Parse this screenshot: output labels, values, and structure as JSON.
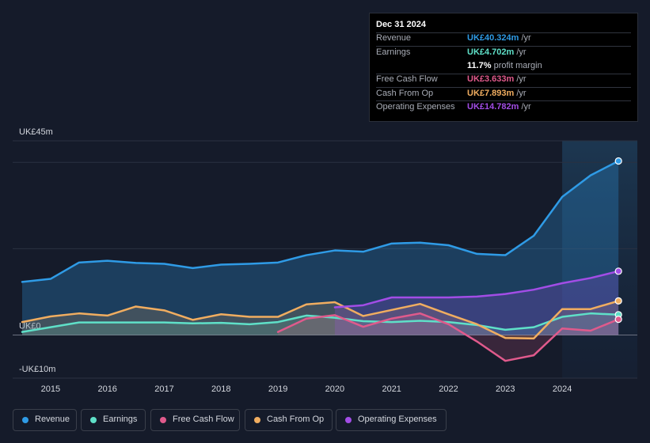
{
  "chart_data": {
    "type": "area",
    "title": "",
    "y_axis": {
      "min": -10,
      "max": 45,
      "labels": {
        "top": "UK£45m",
        "zero": "UK£0",
        "bottom": "-UK£10m"
      }
    },
    "x_ticks": [
      "2015",
      "2016",
      "2017",
      "2018",
      "2019",
      "2020",
      "2021",
      "2022",
      "2023",
      "2024"
    ],
    "highlight_start": 2024.0,
    "series": [
      {
        "key": "revenue",
        "name": "Revenue",
        "color": "#2f9be6",
        "points": [
          [
            2014.5,
            12.3
          ],
          [
            2015.0,
            13.0
          ],
          [
            2015.5,
            16.8
          ],
          [
            2016.0,
            17.2
          ],
          [
            2016.5,
            16.7
          ],
          [
            2017.0,
            16.5
          ],
          [
            2017.5,
            15.5
          ],
          [
            2018.0,
            16.3
          ],
          [
            2018.5,
            16.5
          ],
          [
            2019.0,
            16.8
          ],
          [
            2019.5,
            18.5
          ],
          [
            2020.0,
            19.6
          ],
          [
            2020.5,
            19.3
          ],
          [
            2021.0,
            21.2
          ],
          [
            2021.5,
            21.4
          ],
          [
            2022.0,
            20.8
          ],
          [
            2022.5,
            18.8
          ],
          [
            2023.0,
            18.5
          ],
          [
            2023.5,
            23.0
          ],
          [
            2024.0,
            32.0
          ],
          [
            2024.5,
            37.0
          ],
          [
            2024.99,
            40.324
          ]
        ]
      },
      {
        "key": "earnings",
        "name": "Earnings",
        "color": "#5fe0c8",
        "points": [
          [
            2014.5,
            0.7
          ],
          [
            2015.0,
            1.8
          ],
          [
            2015.5,
            2.9
          ],
          [
            2016.0,
            2.9
          ],
          [
            2016.5,
            2.9
          ],
          [
            2017.0,
            2.9
          ],
          [
            2017.5,
            2.7
          ],
          [
            2018.0,
            2.8
          ],
          [
            2018.5,
            2.5
          ],
          [
            2019.0,
            3.0
          ],
          [
            2019.5,
            4.5
          ],
          [
            2020.0,
            4.0
          ],
          [
            2020.5,
            3.2
          ],
          [
            2021.0,
            3.0
          ],
          [
            2021.5,
            3.3
          ],
          [
            2022.0,
            3.0
          ],
          [
            2022.5,
            2.3
          ],
          [
            2023.0,
            1.2
          ],
          [
            2023.5,
            1.8
          ],
          [
            2024.0,
            4.2
          ],
          [
            2024.5,
            5.0
          ],
          [
            2024.99,
            4.702
          ]
        ]
      },
      {
        "key": "fcf",
        "name": "Free Cash Flow",
        "color": "#e05a8c",
        "points": [
          [
            2019.0,
            0.7
          ],
          [
            2019.5,
            3.8
          ],
          [
            2020.0,
            4.6
          ],
          [
            2020.5,
            1.9
          ],
          [
            2021.0,
            3.8
          ],
          [
            2021.5,
            5.0
          ],
          [
            2022.0,
            2.5
          ],
          [
            2022.5,
            -1.5
          ],
          [
            2023.0,
            -6.0
          ],
          [
            2023.5,
            -4.7
          ],
          [
            2024.0,
            1.5
          ],
          [
            2024.5,
            1.0
          ],
          [
            2024.99,
            3.633
          ]
        ]
      },
      {
        "key": "cfo",
        "name": "Cash From Op",
        "color": "#f0ad60",
        "points": [
          [
            2014.5,
            3.0
          ],
          [
            2015.0,
            4.3
          ],
          [
            2015.5,
            5.0
          ],
          [
            2016.0,
            4.5
          ],
          [
            2016.5,
            6.6
          ],
          [
            2017.0,
            5.7
          ],
          [
            2017.5,
            3.5
          ],
          [
            2018.0,
            4.8
          ],
          [
            2018.5,
            4.2
          ],
          [
            2019.0,
            4.2
          ],
          [
            2019.5,
            7.1
          ],
          [
            2020.0,
            7.6
          ],
          [
            2020.5,
            4.4
          ],
          [
            2021.0,
            5.8
          ],
          [
            2021.5,
            7.2
          ],
          [
            2022.0,
            4.8
          ],
          [
            2022.5,
            2.5
          ],
          [
            2023.0,
            -0.7
          ],
          [
            2023.5,
            -0.8
          ],
          [
            2024.0,
            6.0
          ],
          [
            2024.5,
            6.0
          ],
          [
            2024.99,
            7.893
          ]
        ]
      },
      {
        "key": "opex",
        "name": "Operating Expenses",
        "color": "#a24de6",
        "points": [
          [
            2020.0,
            6.4
          ],
          [
            2020.5,
            6.9
          ],
          [
            2021.0,
            8.7
          ],
          [
            2021.5,
            8.7
          ],
          [
            2022.0,
            8.7
          ],
          [
            2022.5,
            8.9
          ],
          [
            2023.0,
            9.5
          ],
          [
            2023.5,
            10.5
          ],
          [
            2024.0,
            12.0
          ],
          [
            2024.5,
            13.2
          ],
          [
            2024.99,
            14.782
          ]
        ]
      }
    ]
  },
  "tooltip": {
    "date": "Dec 31 2024",
    "rows": [
      {
        "label": "Revenue",
        "value": "UK£40.324m",
        "unit": "/yr",
        "color": "#2f9be6"
      },
      {
        "label": "Earnings",
        "value": "UK£4.702m",
        "unit": "/yr",
        "color": "#5fe0c8"
      },
      {
        "label": "",
        "value": "11.7%",
        "unit": "profit margin",
        "color": "#ffffff"
      },
      {
        "label": "Free Cash Flow",
        "value": "UK£3.633m",
        "unit": "/yr",
        "color": "#e05a8c"
      },
      {
        "label": "Cash From Op",
        "value": "UK£7.893m",
        "unit": "/yr",
        "color": "#f0ad60"
      },
      {
        "label": "Operating Expenses",
        "value": "UK£14.782m",
        "unit": "/yr",
        "color": "#a24de6"
      }
    ]
  },
  "legend": [
    {
      "label": "Revenue",
      "color": "#2f9be6"
    },
    {
      "label": "Earnings",
      "color": "#5fe0c8"
    },
    {
      "label": "Free Cash Flow",
      "color": "#e05a8c"
    },
    {
      "label": "Cash From Op",
      "color": "#f0ad60"
    },
    {
      "label": "Operating Expenses",
      "color": "#a24de6"
    }
  ]
}
